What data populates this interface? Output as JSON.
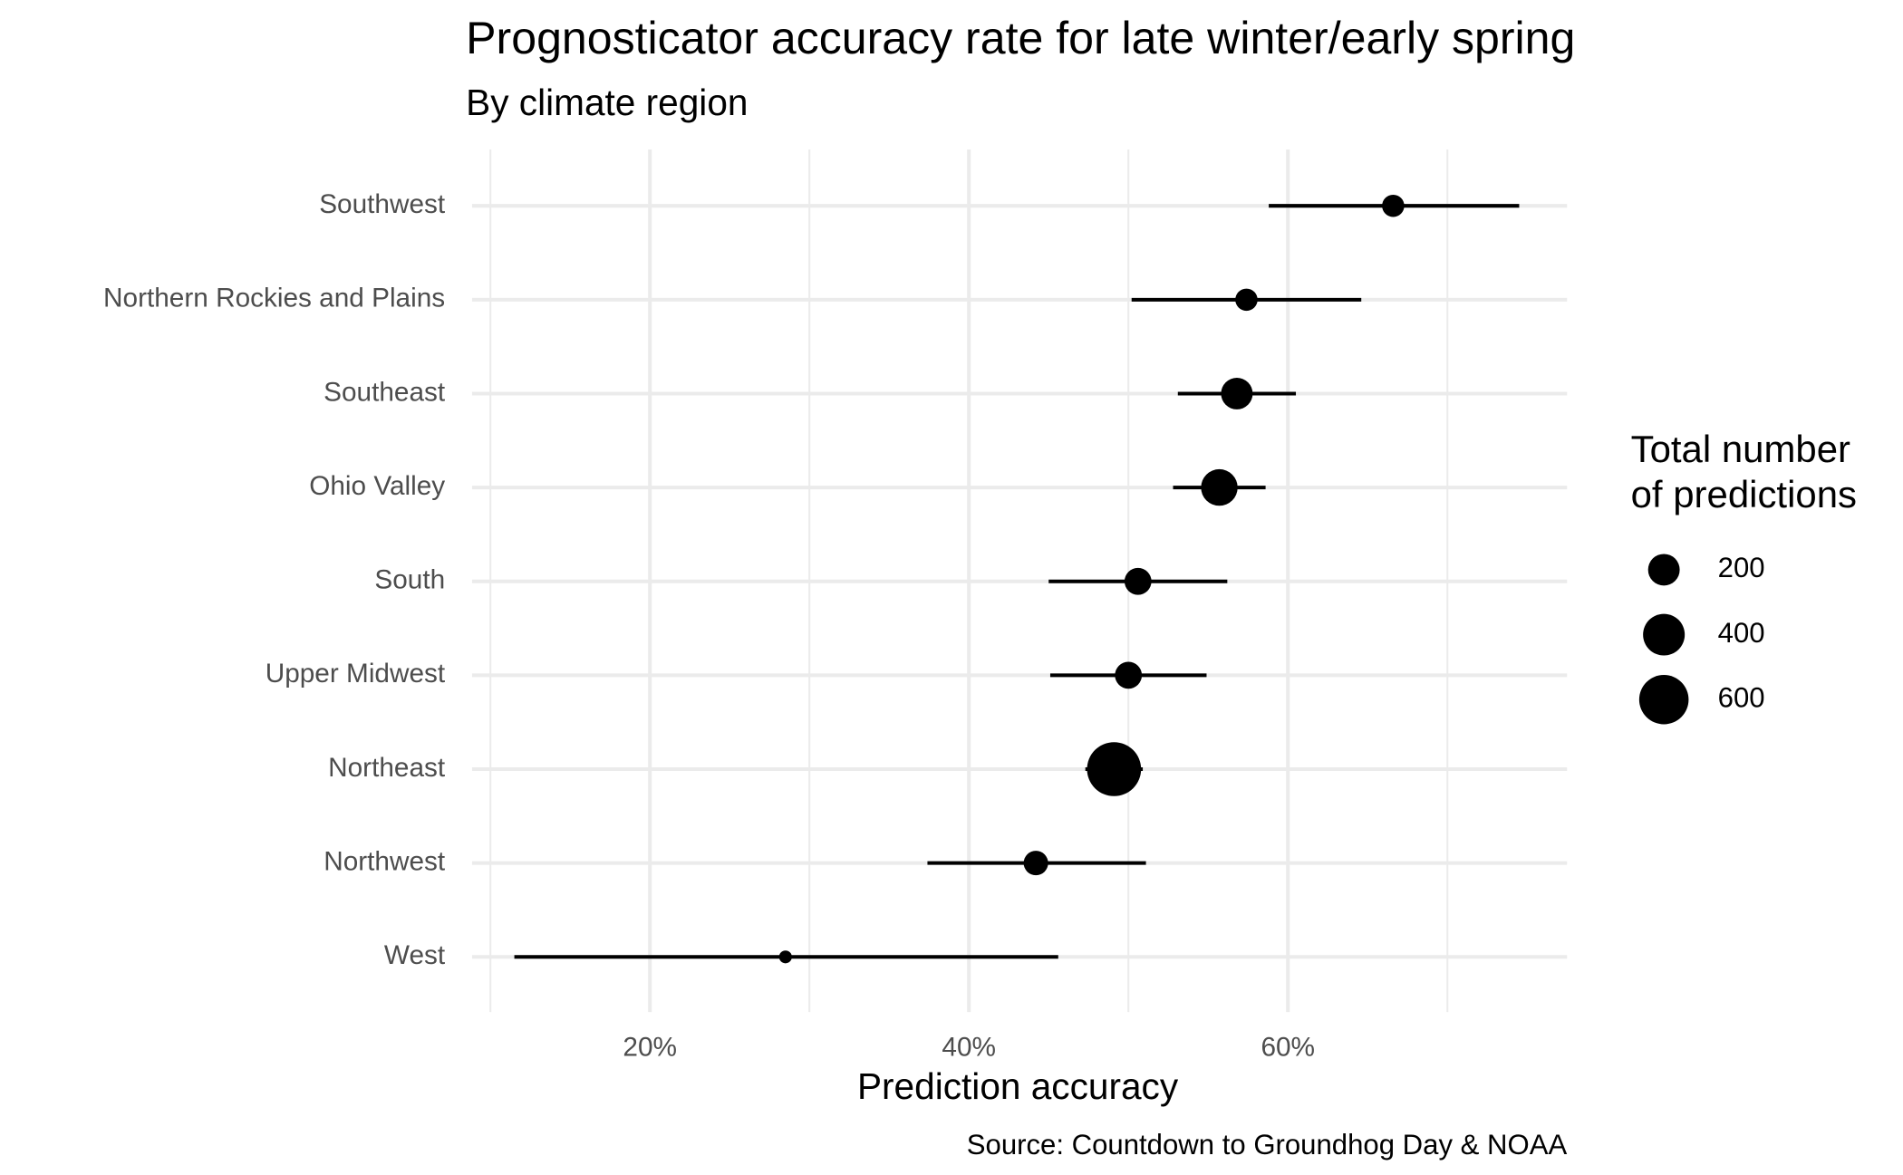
{
  "chart_data": {
    "type": "dot-interval",
    "title": "Prognosticator accuracy rate for late winter/early spring",
    "subtitle": "By climate region",
    "x_label": "Prediction accuracy",
    "caption": "Source: Countdown to Groundhog Day & NOAA",
    "categories": [
      "Southwest",
      "Northern Rockies and Plains",
      "Southeast",
      "Ohio Valley",
      "South",
      "Upper Midwest",
      "Northeast",
      "Northwest",
      "West"
    ],
    "values": [
      66.6,
      57.4,
      56.8,
      55.7,
      50.6,
      50.0,
      49.1,
      44.2,
      28.5
    ],
    "lower": [
      58.8,
      50.2,
      53.1,
      52.8,
      45.0,
      45.1,
      47.3,
      37.4,
      11.5
    ],
    "upper": [
      74.5,
      64.6,
      60.5,
      58.6,
      56.2,
      54.9,
      50.9,
      51.1,
      45.6
    ],
    "sizes": [
      75,
      75,
      200,
      290,
      130,
      130,
      740,
      100,
      10
    ],
    "color": "#000000",
    "xlim": [
      8.85,
      77.5
    ],
    "xticks": [
      {
        "value": 20,
        "label": "20%"
      },
      {
        "value": 40,
        "label": "40%"
      },
      {
        "value": 60,
        "label": "60%"
      }
    ],
    "x_minor_ticks": [
      10,
      30,
      50,
      70
    ],
    "grid": true,
    "size_legend": {
      "title": [
        "Total number",
        "of predictions"
      ],
      "values": [
        200,
        400,
        600
      ]
    }
  }
}
